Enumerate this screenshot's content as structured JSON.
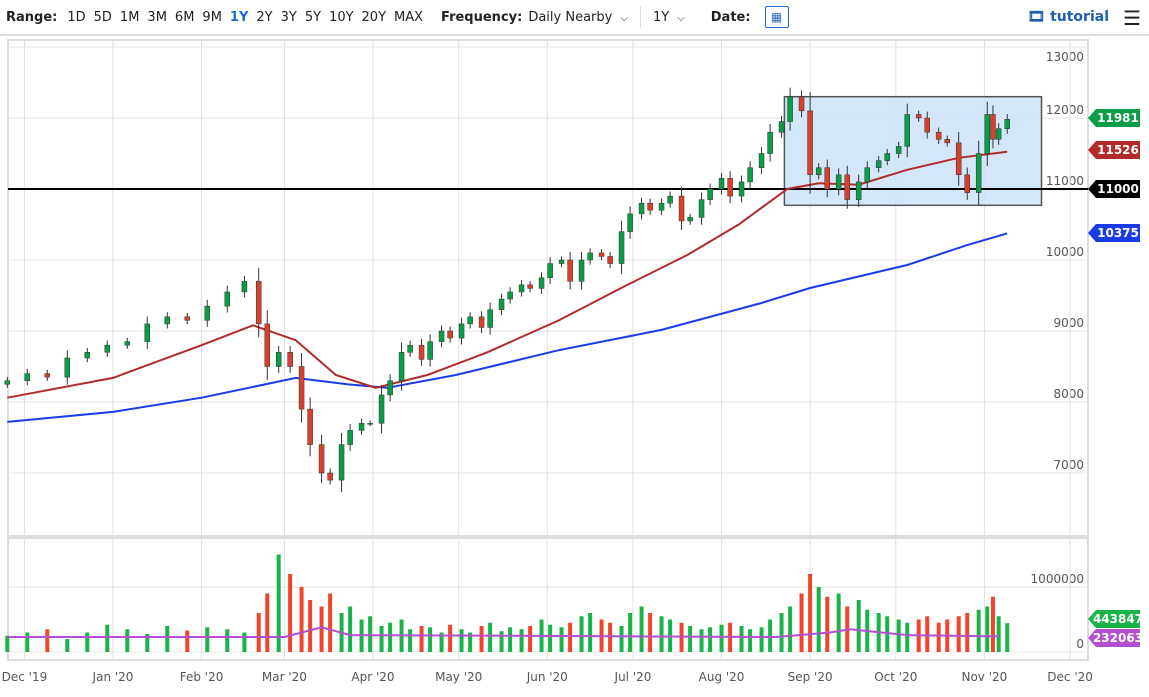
{
  "toolbar": {
    "range_label": "Range:",
    "ranges": [
      "1D",
      "5D",
      "1M",
      "3M",
      "6M",
      "9M",
      "1Y",
      "2Y",
      "3Y",
      "5Y",
      "10Y",
      "20Y",
      "MAX"
    ],
    "active_range": "1Y",
    "frequency_label": "Frequency:",
    "frequency_value": "Daily Nearby",
    "period_value": "1Y",
    "date_label": "Date:",
    "tutorial_label": "tutorial",
    "icons": {
      "calendar": "calendar-icon",
      "tutorial": "film-icon",
      "menu": "hamburger-icon",
      "dropdown": "chevron-down-icon"
    }
  },
  "chart_data": {
    "type": "candlestick",
    "y_ticks": [
      7000,
      8000,
      9000,
      10000,
      11000,
      12000,
      13000
    ],
    "ylim": [
      6200,
      13000
    ],
    "x_ticks": [
      "Dec '19",
      "Jan '20",
      "Feb '20",
      "Mar '20",
      "Apr '20",
      "May '20",
      "Jun '20",
      "Jul '20",
      "Aug '20",
      "Sep '20",
      "Oct '20",
      "Nov '20",
      "Dec '20"
    ],
    "x_tick_dates": [
      "2019-12-01",
      "2020-01-01",
      "2020-02-01",
      "2020-03-01",
      "2020-04-01",
      "2020-05-01",
      "2020-06-01",
      "2020-07-01",
      "2020-08-01",
      "2020-09-01",
      "2020-10-01",
      "2020-11-01",
      "2020-12-01"
    ],
    "dates": [
      "2019-11-25",
      "2019-12-02",
      "2019-12-09",
      "2019-12-16",
      "2019-12-23",
      "2019-12-30",
      "2020-01-06",
      "2020-01-13",
      "2020-01-20",
      "2020-01-27",
      "2020-02-03",
      "2020-02-10",
      "2020-02-16",
      "2020-02-21",
      "2020-02-24",
      "2020-02-28",
      "2020-03-03",
      "2020-03-07",
      "2020-03-10",
      "2020-03-14",
      "2020-03-17",
      "2020-03-21",
      "2020-03-24",
      "2020-03-28",
      "2020-03-31",
      "2020-04-04",
      "2020-04-07",
      "2020-04-11",
      "2020-04-14",
      "2020-04-18",
      "2020-04-21",
      "2020-04-25",
      "2020-04-28",
      "2020-05-02",
      "2020-05-05",
      "2020-05-09",
      "2020-05-12",
      "2020-05-16",
      "2020-05-19",
      "2020-05-23",
      "2020-05-26",
      "2020-05-30",
      "2020-06-02",
      "2020-06-06",
      "2020-06-09",
      "2020-06-13",
      "2020-06-16",
      "2020-06-20",
      "2020-06-23",
      "2020-06-27",
      "2020-06-30",
      "2020-07-04",
      "2020-07-07",
      "2020-07-11",
      "2020-07-14",
      "2020-07-18",
      "2020-07-21",
      "2020-07-25",
      "2020-07-28",
      "2020-08-01",
      "2020-08-04",
      "2020-08-08",
      "2020-08-11",
      "2020-08-15",
      "2020-08-18",
      "2020-08-22",
      "2020-08-25",
      "2020-08-29",
      "2020-09-01",
      "2020-09-04",
      "2020-09-07",
      "2020-09-11",
      "2020-09-14",
      "2020-09-18",
      "2020-09-21",
      "2020-09-25",
      "2020-09-28",
      "2020-10-02",
      "2020-10-05",
      "2020-10-09",
      "2020-10-12",
      "2020-10-16",
      "2020-10-19",
      "2020-10-23",
      "2020-10-26",
      "2020-10-30",
      "2020-11-02",
      "2020-11-04",
      "2020-11-06",
      "2020-11-09"
    ],
    "close": [
      8300,
      8400,
      8350,
      8620,
      8700,
      8800,
      8850,
      9100,
      9200,
      9150,
      9350,
      9550,
      9700,
      9100,
      8500,
      8700,
      8500,
      7900,
      7400,
      7000,
      6900,
      7400,
      7600,
      7700,
      7700,
      8100,
      8300,
      8700,
      8800,
      8600,
      8850,
      9000,
      8900,
      9100,
      9200,
      9050,
      9300,
      9450,
      9550,
      9650,
      9600,
      9750,
      9950,
      10000,
      9700,
      10000,
      10100,
      10050,
      9950,
      10400,
      10650,
      10800,
      10700,
      10800,
      10900,
      10550,
      10600,
      10850,
      11000,
      11150,
      10900,
      11100,
      11300,
      11500,
      11800,
      11950,
      12300,
      12100,
      11200,
      11300,
      11000,
      11200,
      10850,
      11100,
      11300,
      11400,
      11500,
      11600,
      12050,
      12000,
      11800,
      11700,
      11650,
      11200,
      10950,
      11500,
      12050,
      11700,
      11850,
      11981
    ],
    "volume": [
      250000,
      300000,
      350000,
      200000,
      300000,
      420000,
      350000,
      280000,
      400000,
      330000,
      380000,
      350000,
      300000,
      600000,
      900000,
      1500000,
      1200000,
      1000000,
      800000,
      700000,
      900000,
      600000,
      700000,
      500000,
      550000,
      400000,
      450000,
      500000,
      350000,
      400000,
      380000,
      300000,
      420000,
      350000,
      300000,
      400000,
      450000,
      320000,
      380000,
      350000,
      400000,
      500000,
      420000,
      380000,
      450000,
      550000,
      600000,
      500000,
      450000,
      400000,
      600000,
      700000,
      600000,
      550000,
      500000,
      450000,
      400000,
      350000,
      380000,
      420000,
      450000,
      400000,
      350000,
      380000,
      500000,
      600000,
      700000,
      900000,
      1200000,
      1000000,
      850000,
      900000,
      700000,
      800000,
      650000,
      600000,
      550000,
      500000,
      450000,
      500000,
      550000,
      450000,
      500000,
      550000,
      600000,
      650000,
      700000,
      850000,
      550000,
      443847
    ],
    "ma_50": [
      [
        "2019-11-25",
        8060
      ],
      [
        "2020-01-01",
        8340
      ],
      [
        "2020-02-01",
        8800
      ],
      [
        "2020-02-19",
        9080
      ],
      [
        "2020-03-05",
        8870
      ],
      [
        "2020-03-19",
        8380
      ],
      [
        "2020-04-02",
        8200
      ],
      [
        "2020-04-20",
        8380
      ],
      [
        "2020-05-11",
        8700
      ],
      [
        "2020-06-05",
        9150
      ],
      [
        "2020-06-29",
        9650
      ],
      [
        "2020-07-20",
        10070
      ],
      [
        "2020-08-07",
        10500
      ],
      [
        "2020-08-24",
        11000
      ],
      [
        "2020-09-04",
        11080
      ],
      [
        "2020-09-18",
        11060
      ],
      [
        "2020-10-05",
        11270
      ],
      [
        "2020-10-23",
        11440
      ],
      [
        "2020-11-09",
        11526
      ]
    ],
    "ma_200": [
      [
        "2019-11-25",
        7720
      ],
      [
        "2020-01-01",
        7860
      ],
      [
        "2020-02-01",
        8060
      ],
      [
        "2020-03-05",
        8340
      ],
      [
        "2020-03-23",
        8250
      ],
      [
        "2020-04-06",
        8200
      ],
      [
        "2020-04-30",
        8380
      ],
      [
        "2020-06-05",
        8730
      ],
      [
        "2020-07-11",
        9015
      ],
      [
        "2020-08-15",
        9395
      ],
      [
        "2020-09-01",
        9605
      ],
      [
        "2020-10-05",
        9930
      ],
      [
        "2020-10-26",
        10210
      ],
      [
        "2020-11-09",
        10375
      ]
    ],
    "volume_avg": [
      [
        "2019-11-25",
        230000
      ],
      [
        "2020-03-01",
        230000
      ],
      [
        "2020-03-14",
        380000
      ],
      [
        "2020-03-24",
        260000
      ],
      [
        "2020-08-20",
        230000
      ],
      [
        "2020-09-08",
        300000
      ],
      [
        "2020-09-15",
        350000
      ],
      [
        "2020-10-05",
        260000
      ],
      [
        "2020-11-06",
        240000
      ]
    ],
    "horizontal_line": 11000,
    "box": {
      "from": "2020-08-23",
      "to": "2020-11-21",
      "high": 12300,
      "low": 10770
    },
    "volume_ticks": [
      0,
      1000000
    ],
    "last_values": {
      "close": "11981",
      "ma_50": "11526",
      "line": "11000",
      "ma_200": "10375",
      "volume": "443847",
      "volume_avg": "232063"
    },
    "colors": {
      "up": "#0a9d47",
      "down": "#d9402b",
      "vol_up": "#19b34a",
      "vol_down": "#f0452c",
      "ma_50": "#b32a2a",
      "ma_200": "#1a3be8",
      "volume_avg": "#b44fcf",
      "box_fill": "#cbe2f9",
      "line": "#000000"
    }
  }
}
